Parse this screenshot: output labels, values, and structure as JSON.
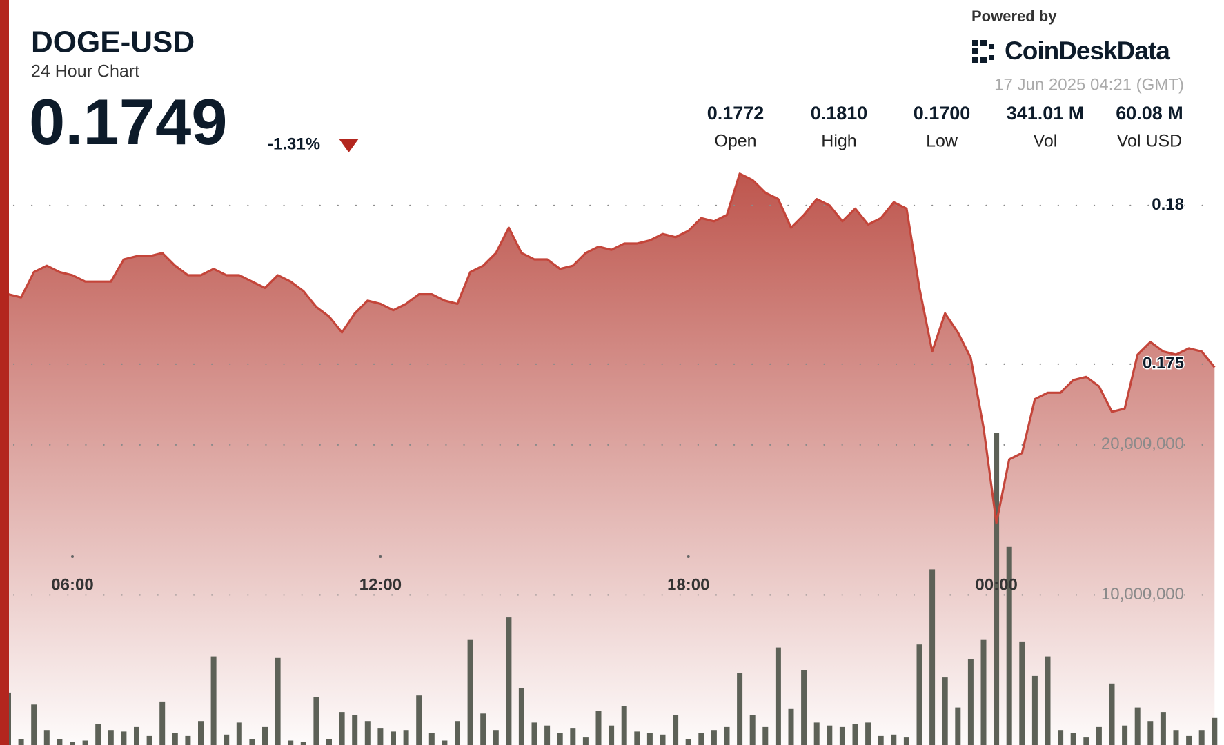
{
  "header": {
    "symbol": "DOGE-USD",
    "subtitle": "24 Hour Chart",
    "price": "0.1749",
    "change": "-1.31%",
    "powered_by": "Powered by",
    "brand": "CoinDeskData",
    "timestamp": "17 Jun 2025 04:21 (GMT)",
    "stats": [
      {
        "value": "0.1772",
        "label": "Open"
      },
      {
        "value": "0.1810",
        "label": "High"
      },
      {
        "value": "0.1700",
        "label": "Low"
      },
      {
        "value": "341.01 M",
        "label": "Vol"
      },
      {
        "value": "60.08 M",
        "label": "Vol USD"
      }
    ]
  },
  "chart_data": {
    "type": "line",
    "x": [
      4.75,
      5,
      5.25,
      5.5,
      5.75,
      6,
      6.25,
      6.5,
      6.75,
      7,
      7.25,
      7.5,
      7.75,
      8,
      8.25,
      8.5,
      8.75,
      9,
      9.25,
      9.5,
      9.75,
      10,
      10.25,
      10.5,
      10.75,
      11,
      11.25,
      11.5,
      11.75,
      12,
      12.25,
      12.5,
      12.75,
      13,
      13.25,
      13.5,
      13.75,
      14,
      14.25,
      14.5,
      14.75,
      15,
      15.25,
      15.5,
      15.75,
      16,
      16.25,
      16.5,
      16.75,
      17,
      17.25,
      17.5,
      17.75,
      18,
      18.25,
      18.5,
      18.75,
      19,
      19.25,
      19.5,
      19.75,
      20,
      20.25,
      20.5,
      20.75,
      21,
      21.25,
      21.5,
      21.75,
      22,
      22.25,
      22.5,
      22.75,
      23,
      23.25,
      23.5,
      23.75,
      24,
      24.25,
      24.5,
      24.75,
      25,
      25.25,
      25.5,
      25.75,
      26,
      26.25,
      26.5,
      26.75,
      27,
      27.25,
      27.5,
      27.75,
      28,
      28.25
    ],
    "xlim": [
      4.75,
      28.3
    ],
    "xticks": [
      {
        "value": 6,
        "label": "06:00"
      },
      {
        "value": 12,
        "label": "12:00"
      },
      {
        "value": 18,
        "label": "18:00"
      },
      {
        "value": 24,
        "label": "00:00"
      }
    ],
    "ylim": [
      0.163,
      0.1813
    ],
    "yticks": [
      0.18,
      0.175
    ],
    "y2lim": [
      0,
      38700000
    ],
    "y2ticks": [
      {
        "value": 20000000,
        "label": "20,000,000"
      },
      {
        "value": 10000000,
        "label": "10,000,000"
      }
    ],
    "grid": true,
    "series": [
      {
        "type": "line",
        "color": "#c4453a",
        "values": [
          0.1772,
          0.1771,
          0.1779,
          0.1781,
          0.1779,
          0.1778,
          0.1776,
          0.1776,
          0.1776,
          0.1783,
          0.1784,
          0.1784,
          0.1785,
          0.1781,
          0.1778,
          0.1778,
          0.178,
          0.1778,
          0.1778,
          0.1776,
          0.1774,
          0.1778,
          0.1776,
          0.1773,
          0.1768,
          0.1765,
          0.176,
          0.1766,
          0.177,
          0.1769,
          0.1767,
          0.1769,
          0.1772,
          0.1772,
          0.177,
          0.1769,
          0.1779,
          0.1781,
          0.1785,
          0.1793,
          0.1785,
          0.1783,
          0.1783,
          0.178,
          0.1781,
          0.1785,
          0.1787,
          0.1786,
          0.1788,
          0.1788,
          0.1789,
          0.1791,
          0.179,
          0.1792,
          0.1796,
          0.1795,
          0.1797,
          0.181,
          0.1808,
          0.1804,
          0.1802,
          0.1793,
          0.1797,
          0.1802,
          0.18,
          0.1795,
          0.1799,
          0.1794,
          0.1796,
          0.1801,
          0.1799,
          0.1774,
          0.1754,
          0.1766,
          0.176,
          0.1752,
          0.173,
          0.17,
          0.172,
          0.1722,
          0.1739,
          0.1741,
          0.1741,
          0.1745,
          0.1746,
          0.1743,
          0.1735,
          0.1736,
          0.1753,
          0.1757,
          0.1754,
          0.1753,
          0.1755,
          0.1754,
          0.1749
        ]
      },
      {
        "type": "bar",
        "axis": "y2",
        "color": "#5d6157",
        "values": [
          3500000,
          400000,
          2700000,
          1000000,
          400000,
          200000,
          300000,
          1400000,
          1000000,
          900000,
          1200000,
          600000,
          2900000,
          800000,
          600000,
          1600000,
          5900000,
          700000,
          1500000,
          400000,
          1200000,
          5800000,
          300000,
          200000,
          3200000,
          400000,
          2200000,
          2000000,
          1600000,
          1100000,
          900000,
          1000000,
          3300000,
          800000,
          300000,
          1600000,
          7000000,
          2100000,
          1000000,
          8500000,
          3800000,
          1500000,
          1300000,
          800000,
          1100000,
          500000,
          2300000,
          1300000,
          2600000,
          900000,
          800000,
          700000,
          2000000,
          400000,
          800000,
          1000000,
          1200000,
          4800000,
          2000000,
          1200000,
          6500000,
          2400000,
          5000000,
          1500000,
          1300000,
          1200000,
          1400000,
          1500000,
          600000,
          700000,
          500000,
          6700000,
          11700000,
          4500000,
          2500000,
          5700000,
          7000000,
          20800000,
          13200000,
          6900000,
          4600000,
          5900000,
          1000000,
          800000,
          500000,
          1200000,
          4100000,
          1300000,
          2500000,
          1600000,
          2200000,
          1000000,
          600000,
          1000000,
          1800000
        ]
      }
    ]
  }
}
